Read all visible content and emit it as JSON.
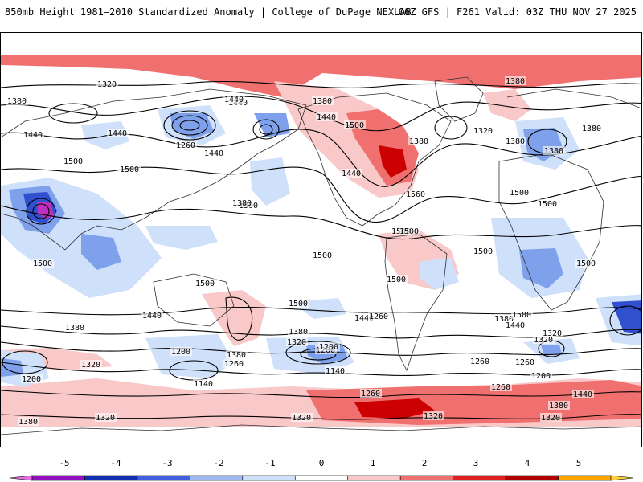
{
  "header": {
    "left_title": "850mb Height 1981–2010 Standardized Anomaly | College of DuPage NEXLAB",
    "right_title": "06Z GFS | F261 Valid: 03Z THU NOV 27 2025"
  },
  "colorbar": {
    "ticks": [
      "-5",
      "-4",
      "-3",
      "-2",
      "-1",
      "0",
      "1",
      "2",
      "3",
      "4",
      "5"
    ],
    "colors": [
      "#e070e0",
      "#9010c0",
      "#1030b0",
      "#4060e0",
      "#9fb8f0",
      "#cfe0fa",
      "#ffffff",
      "#f9c8c8",
      "#f07070",
      "#e02020",
      "#b00000",
      "#ffa500",
      "#ffd040"
    ]
  },
  "map": {
    "colors": {
      "ocean": "#ffffff",
      "weak_pos": "#f9c8c8",
      "pos": "#f07070",
      "strong_pos": "#cc0000",
      "weak_neg": "#cfe0fa",
      "neg": "#7fa0ea",
      "strong_neg": "#3050d0",
      "extreme_neg": "#c030c0",
      "contour": "#000000",
      "coast": "#303030"
    },
    "contour_labels": [
      "1500",
      "1500",
      "1380",
      "1320",
      "1380",
      "1440",
      "1380",
      "1440",
      "1440",
      "1380",
      "1440",
      "1500",
      "1380",
      "1320",
      "1380",
      "1380",
      "1440",
      "1500",
      "1500",
      "1560",
      "1440",
      "1500",
      "1500",
      "1500",
      "1380",
      "1260",
      "1440",
      "1500",
      "1500",
      "1500",
      "1500",
      "1500",
      "1500",
      "1500",
      "1500",
      "1500",
      "1440",
      "1380",
      "1320",
      "1200",
      "1380",
      "1260",
      "1200",
      "1140",
      "1440",
      "1380",
      "1320",
      "1200",
      "1140",
      "1260",
      "1200",
      "1320",
      "1260",
      "1260",
      "1320",
      "1200",
      "1380",
      "1320",
      "1380",
      "1320",
      "1320",
      "1440",
      "1380",
      "1440",
      "1500",
      "1260",
      "1260",
      "1320"
    ]
  }
}
